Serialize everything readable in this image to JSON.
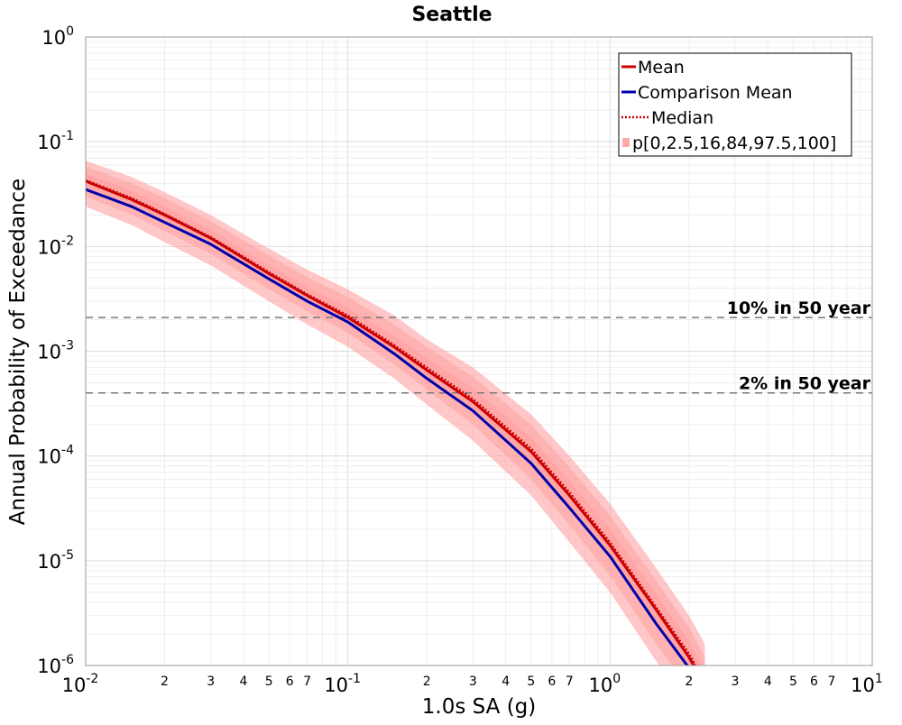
{
  "chart_data": {
    "type": "line",
    "title": "Seattle",
    "xlabel": "1.0s SA (g)",
    "ylabel": "Annual Probability of Exceedance",
    "xscale": "log",
    "yscale": "log",
    "xlim": [
      0.01,
      10
    ],
    "ylim": [
      1e-06,
      1
    ],
    "grid": true,
    "legend_position": "top-right",
    "x_major_ticks": [
      {
        "value": 0.01,
        "base": "10",
        "exp": "-2"
      },
      {
        "value": 0.1,
        "base": "10",
        "exp": "-1"
      },
      {
        "value": 1,
        "base": "10",
        "exp": "0"
      },
      {
        "value": 10,
        "base": "10",
        "exp": "1"
      }
    ],
    "x_minor_tick_labels": [
      "2",
      "3",
      "4",
      "5",
      "6",
      "7"
    ],
    "y_major_ticks": [
      {
        "value": 1,
        "base": "10",
        "exp": "0"
      },
      {
        "value": 0.1,
        "base": "10",
        "exp": "-1"
      },
      {
        "value": 0.01,
        "base": "10",
        "exp": "-2"
      },
      {
        "value": 0.001,
        "base": "10",
        "exp": "-3"
      },
      {
        "value": 0.0001,
        "base": "10",
        "exp": "-4"
      },
      {
        "value": 1e-05,
        "base": "10",
        "exp": "-5"
      },
      {
        "value": 1e-06,
        "base": "10",
        "exp": "-6"
      }
    ],
    "x": [
      0.01,
      0.015,
      0.02,
      0.03,
      0.05,
      0.07,
      0.1,
      0.15,
      0.2,
      0.3,
      0.5,
      0.7,
      1.0,
      1.5,
      2.0,
      2.3
    ],
    "series": [
      {
        "name": "Mean",
        "color": "#cc0000",
        "style": "solid",
        "values": [
          0.042,
          0.028,
          0.02,
          0.012,
          0.0055,
          0.0034,
          0.0021,
          0.0011,
          0.00066,
          0.00033,
          0.00011,
          4.2e-05,
          1.4e-05,
          3.4e-06,
          1.2e-06,
          6.5e-07
        ]
      },
      {
        "name": "Comparison Mean",
        "color": "#0000aa",
        "style": "solid",
        "values": [
          0.035,
          0.024,
          0.017,
          0.0105,
          0.0049,
          0.003,
          0.0019,
          0.00095,
          0.00055,
          0.00027,
          8.5e-05,
          3.2e-05,
          1.1e-05,
          2.5e-06,
          9.5e-07,
          5e-07
        ]
      },
      {
        "name": "Median",
        "color": "#cc0000",
        "style": "dotted",
        "values": [
          0.043,
          0.029,
          0.0205,
          0.0123,
          0.0057,
          0.0035,
          0.0022,
          0.00115,
          0.0007,
          0.00035,
          0.000118,
          4.5e-05,
          1.5e-05,
          3.6e-06,
          1.3e-06,
          7e-07
        ]
      }
    ],
    "bands": {
      "name": "p[0,2.5,16,84,97.5,100]",
      "color": "#ff9999",
      "p0": [
        0.024,
        0.016,
        0.011,
        0.0066,
        0.003,
        0.0018,
        0.0011,
        0.00055,
        0.00031,
        0.00014,
        4.2e-05,
        1.5e-05,
        5e-06,
        1.1e-06,
        4e-07,
        2e-07
      ],
      "p2_5": [
        0.03,
        0.02,
        0.014,
        0.0085,
        0.0039,
        0.0024,
        0.0015,
        0.00075,
        0.00043,
        0.0002,
        6e-05,
        2.2e-05,
        7.2e-06,
        1.6e-06,
        6e-07,
        3e-07
      ],
      "p16": [
        0.036,
        0.024,
        0.017,
        0.0103,
        0.0048,
        0.003,
        0.0018,
        0.00095,
        0.00056,
        0.00027,
        8.8e-05,
        3.3e-05,
        1.1e-05,
        2.6e-06,
        9.5e-07,
        5.2e-07
      ],
      "p84": [
        0.05,
        0.034,
        0.024,
        0.0144,
        0.0066,
        0.0041,
        0.0026,
        0.0014,
        0.00086,
        0.00044,
        0.00015,
        5.8e-05,
        2e-05,
        4.8e-06,
        1.7e-06,
        9e-07
      ],
      "p97_5": [
        0.058,
        0.04,
        0.029,
        0.0175,
        0.0082,
        0.0051,
        0.0033,
        0.0018,
        0.0011,
        0.00057,
        0.0002,
        7.8e-05,
        2.7e-05,
        6.4e-06,
        2.3e-06,
        1.2e-06
      ],
      "p100": [
        0.066,
        0.046,
        0.033,
        0.02,
        0.0095,
        0.006,
        0.0039,
        0.0022,
        0.0013,
        0.0007,
        0.00025,
        0.0001,
        3.5e-05,
        8.5e-06,
        3e-06,
        1.6e-06
      ]
    },
    "hlines": [
      {
        "label": "10% in 50 year",
        "value": 0.0021
      },
      {
        "label": "2% in 50 year",
        "value": 0.0004
      }
    ],
    "legend": [
      {
        "label": "Mean",
        "kind": "solid",
        "color": "#cc0000"
      },
      {
        "label": "Comparison Mean",
        "kind": "solid",
        "color": "#0000aa"
      },
      {
        "label": "Median",
        "kind": "dotted",
        "color": "#cc0000"
      },
      {
        "label": "p[0,2.5,16,84,97.5,100]",
        "kind": "patch",
        "color": "#ffaaaa"
      }
    ]
  }
}
